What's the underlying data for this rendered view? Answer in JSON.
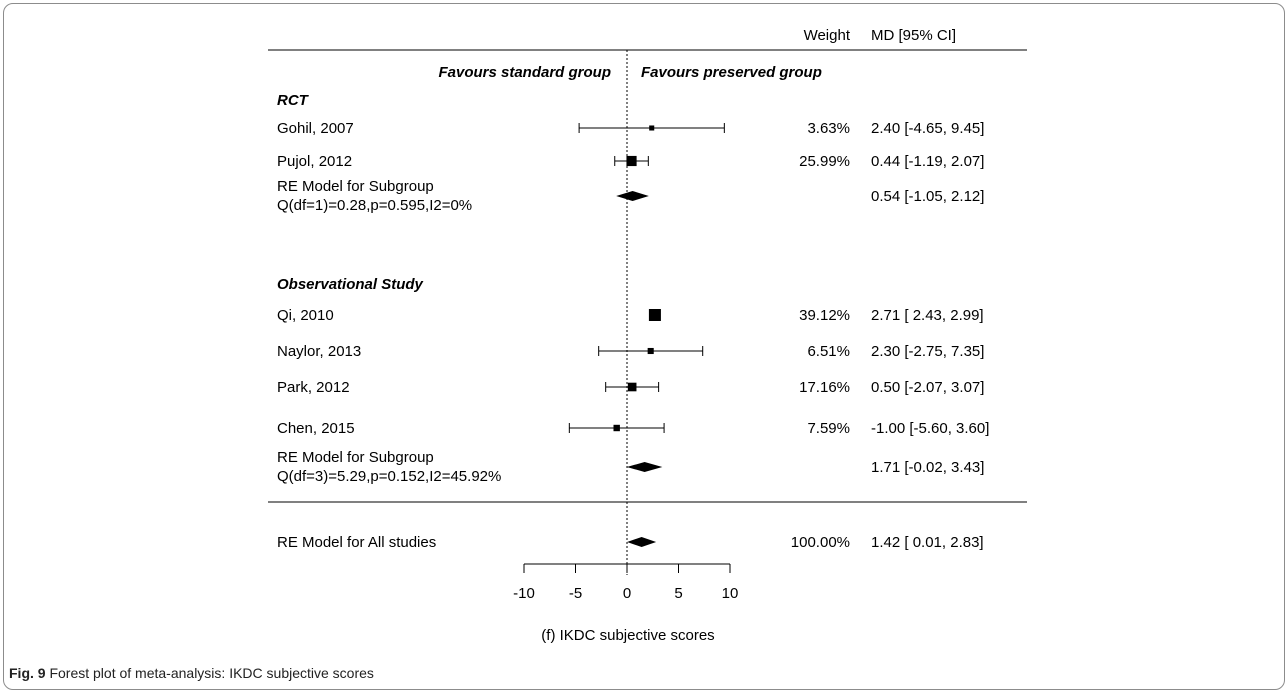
{
  "chart_data": {
    "type": "forest",
    "xlabel": "(f) IKDC subjective scores",
    "xlim": [
      -10,
      10
    ],
    "xticks": [
      "-10",
      "-5",
      "0",
      "5",
      "10"
    ],
    "reference_line": 0,
    "headers": {
      "weight": "Weight",
      "estimate": "MD [95% CI]",
      "favours_left": "Favours standard group",
      "favours_right": "Favours preserved group"
    },
    "rows": [
      {
        "kind": "group",
        "label": "RCT"
      },
      {
        "kind": "study",
        "label": "Gohil, 2007",
        "md": 2.4,
        "lo": -4.65,
        "hi": 9.45,
        "weight": 3.63,
        "weight_text": "3.63%",
        "ci_text": "2.40 [-4.65, 9.45]"
      },
      {
        "kind": "study",
        "label": "Pujol, 2012",
        "md": 0.44,
        "lo": -1.19,
        "hi": 2.07,
        "weight": 25.99,
        "weight_text": "25.99%",
        "ci_text": "0.44 [-1.19, 2.07]"
      },
      {
        "kind": "summary",
        "label": "RE Model for Subgroup",
        "sublabel": "Q(df=1)=0.28,p=0.595,I2=0%",
        "md": 0.54,
        "lo": -1.05,
        "hi": 2.12,
        "weight_text": "",
        "ci_text": "0.54 [-1.05, 2.12]"
      },
      {
        "kind": "group",
        "label": "Observational Study"
      },
      {
        "kind": "study",
        "label": "Qi, 2010",
        "md": 2.71,
        "lo": 2.43,
        "hi": 2.99,
        "weight": 39.12,
        "weight_text": "39.12%",
        "ci_text": "2.71 [ 2.43, 2.99]"
      },
      {
        "kind": "study",
        "label": "Naylor, 2013",
        "md": 2.3,
        "lo": -2.75,
        "hi": 7.35,
        "weight": 6.51,
        "weight_text": "6.51%",
        "ci_text": "2.30 [-2.75, 7.35]"
      },
      {
        "kind": "study",
        "label": "Park, 2012",
        "md": 0.5,
        "lo": -2.07,
        "hi": 3.07,
        "weight": 17.16,
        "weight_text": "17.16%",
        "ci_text": "0.50 [-2.07, 3.07]"
      },
      {
        "kind": "study",
        "label": "Chen, 2015",
        "md": -1.0,
        "lo": -5.6,
        "hi": 3.6,
        "weight": 7.59,
        "weight_text": "7.59%",
        "ci_text": "-1.00 [-5.60, 3.60]"
      },
      {
        "kind": "summary",
        "label": "RE Model for Subgroup",
        "sublabel": "Q(df=3)=5.29,p=0.152,I2=45.92%",
        "md": 1.71,
        "lo": -0.02,
        "hi": 3.43,
        "weight_text": "",
        "ci_text": "1.71 [-0.02, 3.43]"
      },
      {
        "kind": "overall",
        "label": "RE Model for All studies",
        "md": 1.42,
        "lo": 0.01,
        "hi": 2.83,
        "weight_text": "100.00%",
        "ci_text": "1.42 [ 0.01, 2.83]"
      }
    ]
  },
  "caption": {
    "fig_label": "Fig. 9",
    "text": " Forest plot of meta-analysis: IKDC subjective scores"
  }
}
